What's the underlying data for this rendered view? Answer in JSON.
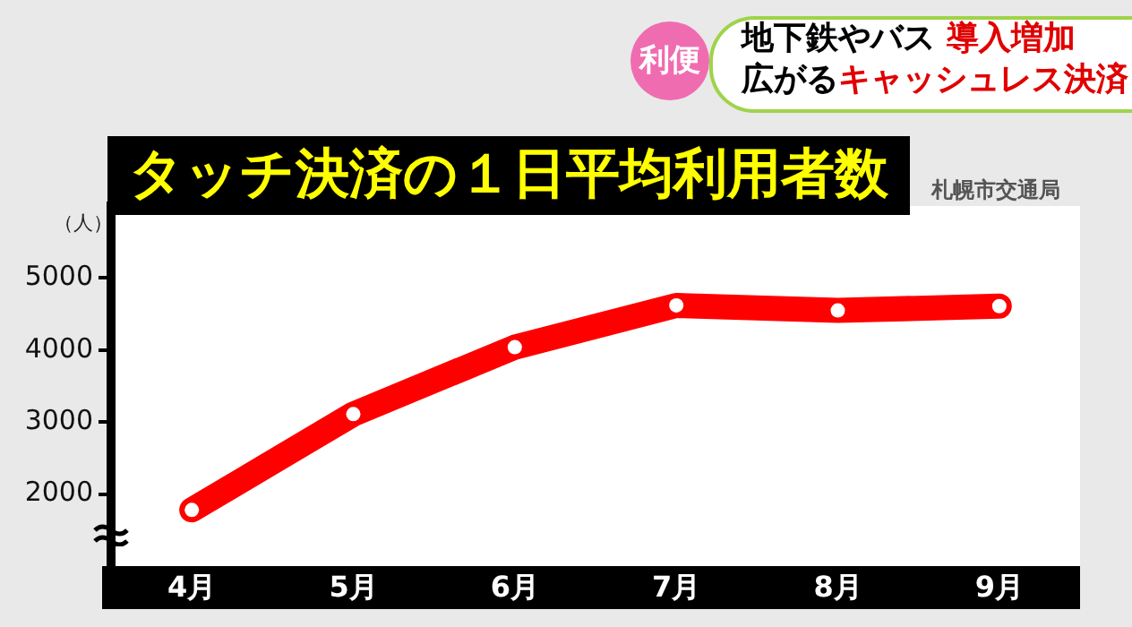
{
  "chart_data": {
    "type": "line",
    "title": "タッチ決済の１日平均利用者数",
    "ylabel": "（人）",
    "annotations": [
      "利便",
      "地下鉄やバス",
      "導入増加",
      "広がる",
      "キャッシュレス決済",
      "札幌市交通局"
    ],
    "categories": [
      "4月",
      "5月",
      "6月",
      "7月",
      "8月",
      "9月"
    ],
    "series": [
      {
        "color": "#ff0000",
        "values": [
          1780,
          3110,
          4040,
          4620,
          4550,
          4610
        ]
      }
    ],
    "ylim": [
      1000,
      6000
    ],
    "yticks": [
      2000,
      3000,
      4000,
      5000
    ],
    "grid": false,
    "legend": false,
    "marker": "circle",
    "line_style": "solid"
  }
}
